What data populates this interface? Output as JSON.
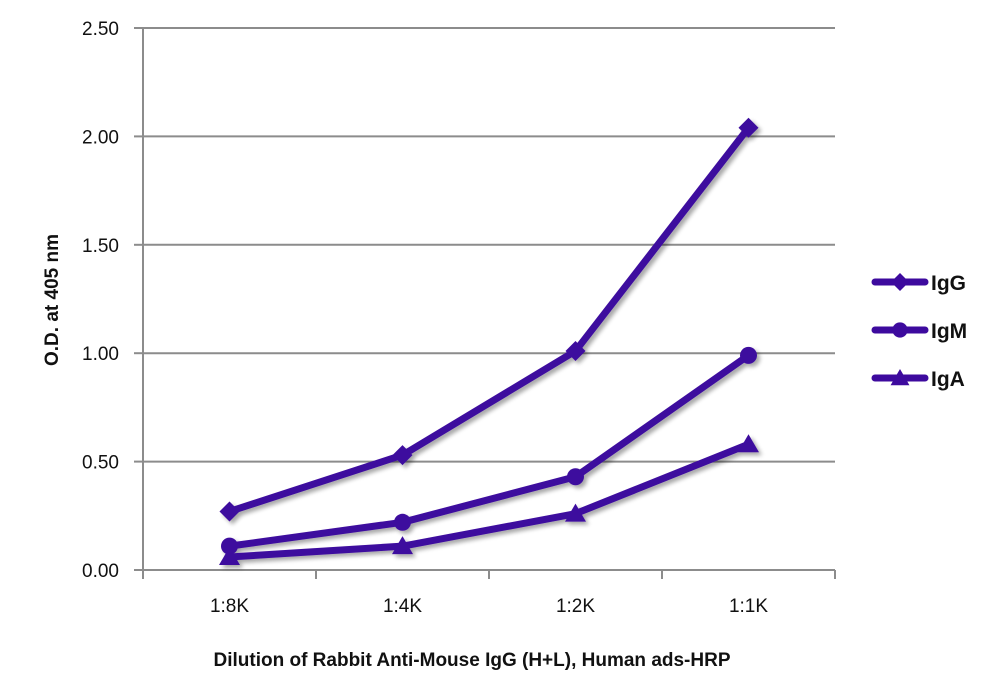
{
  "chart_data": {
    "type": "line",
    "title": "",
    "xlabel": "Dilution of Rabbit Anti-Mouse IgG (H+L), Human ads-HRP",
    "ylabel": "O.D. at 405 nm",
    "categories": [
      "1:8K",
      "1:4K",
      "1:2K",
      "1:1K"
    ],
    "ylim": [
      0,
      2.5
    ],
    "yticks": [
      "0.00",
      "0.50",
      "1.00",
      "1.50",
      "2.00",
      "2.50"
    ],
    "grid": true,
    "legend_position": "right",
    "series": [
      {
        "name": "IgG",
        "marker": "diamond",
        "values": [
          0.27,
          0.53,
          1.01,
          2.04
        ]
      },
      {
        "name": "IgM",
        "marker": "circle",
        "values": [
          0.11,
          0.22,
          0.43,
          0.99
        ]
      },
      {
        "name": "IgA",
        "marker": "triangle",
        "values": [
          0.06,
          0.11,
          0.26,
          0.58
        ]
      }
    ],
    "colors": {
      "series": "#3d0a9e",
      "grid": "#8c8c8c",
      "axis": "#8c8c8c"
    }
  }
}
